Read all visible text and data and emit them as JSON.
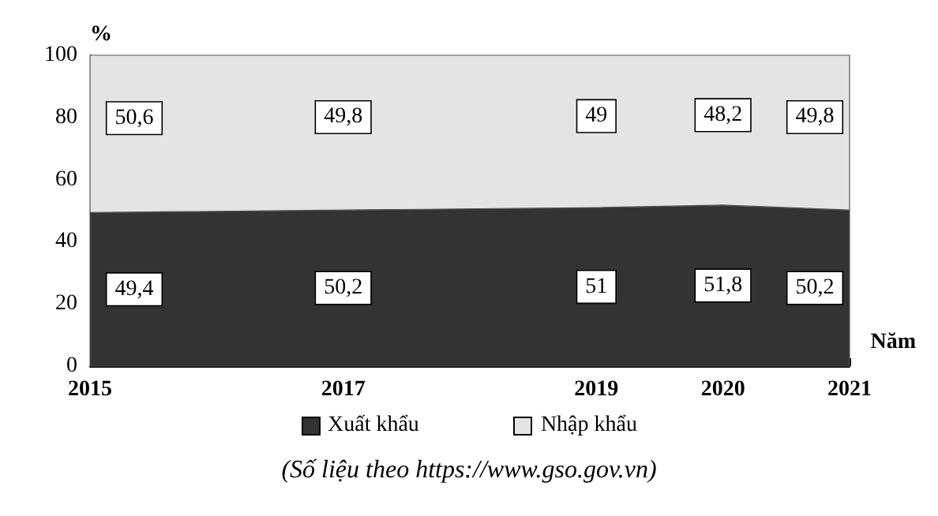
{
  "chart_data": {
    "type": "area",
    "stacked": true,
    "ylabel": "%",
    "xlabel": "Năm",
    "x": [
      2015,
      2017,
      2019,
      2020,
      2021
    ],
    "series": [
      {
        "name": "Xuất khẩu",
        "color": "#333333",
        "values": [
          49.4,
          50.2,
          51,
          51.8,
          50.2
        ],
        "value_labels": [
          "49,4",
          "50,2",
          "51",
          "51,8",
          "50,2"
        ]
      },
      {
        "name": "Nhập khẩu",
        "color": "#e4e4e4",
        "values": [
          50.6,
          49.8,
          49,
          48.2,
          49.8
        ],
        "value_labels": [
          "50,6",
          "49,8",
          "49",
          "48,2",
          "49,8"
        ]
      }
    ],
    "xlim": [
      2015,
      2021
    ],
    "xticks": [
      2015,
      2017,
      2019,
      2020,
      2021
    ],
    "ylim": [
      0,
      100
    ],
    "yticks": [
      0,
      20,
      40,
      60,
      80,
      100
    ],
    "grid": false,
    "legend": "bottom",
    "annotations": [
      "(Số liệu theo https://www.gso.gov.vn)"
    ]
  }
}
